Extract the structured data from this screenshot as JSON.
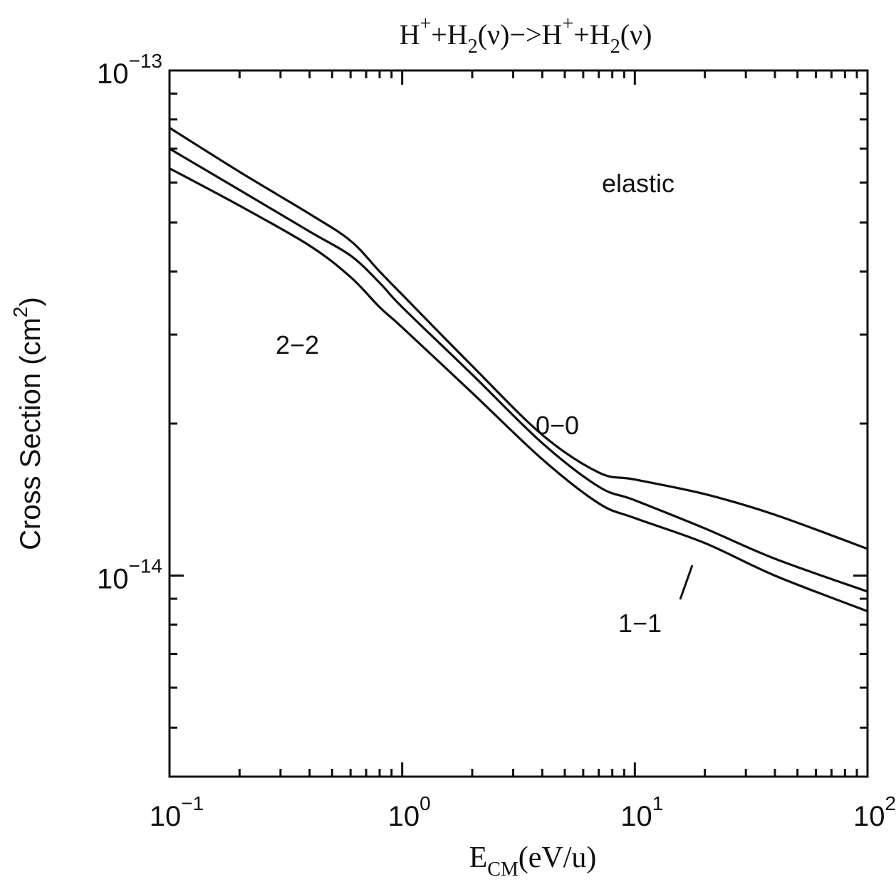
{
  "chart_data": {
    "type": "line",
    "title": {
      "parts": [
        {
          "t": "H",
          "k": "n"
        },
        {
          "t": "+",
          "k": "sup"
        },
        {
          "t": "+H",
          "k": "n"
        },
        {
          "t": "2",
          "k": "sub"
        },
        {
          "t": "(ν)−>H",
          "k": "n"
        },
        {
          "t": "+",
          "k": "sup"
        },
        {
          "t": "+H",
          "k": "n"
        },
        {
          "t": "2",
          "k": "sub"
        },
        {
          "t": "(ν)",
          "k": "n"
        }
      ]
    },
    "xlabel": {
      "main": "E",
      "sub": "CM",
      "rest": "(eV/u)"
    },
    "ylabel": {
      "main": "Cross Section (cm",
      "sup": "2",
      "rest": ")"
    },
    "xscale": "log",
    "yscale": "log",
    "xlim": [
      0.1,
      100
    ],
    "ylim": [
      4e-15,
      1e-13
    ],
    "x_tick_labels": [
      {
        "value": 0.1,
        "base": "10",
        "exp": "−1"
      },
      {
        "value": 1,
        "base": "10",
        "exp": "0"
      },
      {
        "value": 10,
        "base": "10",
        "exp": "1"
      },
      {
        "value": 100,
        "base": "10",
        "exp": "2"
      }
    ],
    "y_tick_labels": [
      {
        "value": 1e-13,
        "base": "10",
        "exp": "−13"
      },
      {
        "value": 1e-14,
        "base": "10",
        "exp": "−14"
      }
    ],
    "grid": false,
    "annotations": {
      "panel": "elastic",
      "curve_00": "0−0",
      "curve_11": "1−1",
      "curve_22": "2−2"
    },
    "series": [
      {
        "label": "0−0",
        "x": [
          0.1,
          0.2,
          0.4,
          0.6,
          0.8,
          1.0,
          2.0,
          4.0,
          7.0,
          10,
          20,
          40,
          100
        ],
        "y": [
          7.7e-14,
          6.3e-14,
          5.2e-14,
          4.6e-14,
          4e-14,
          3.6e-14,
          2.6e-14,
          1.9e-14,
          1.6e-14,
          1.55e-14,
          1.45e-14,
          1.32e-14,
          1.13e-14
        ]
      },
      {
        "label": "1−1",
        "x": [
          0.1,
          0.2,
          0.4,
          0.6,
          0.8,
          1.0,
          2.0,
          4.0,
          7.0,
          10,
          20,
          40,
          100
        ],
        "y": [
          7e-14,
          5.8e-14,
          4.8e-14,
          4.3e-14,
          3.8e-14,
          3.4e-14,
          2.5e-14,
          1.83e-14,
          1.5e-14,
          1.41e-14,
          1.24e-14,
          1.08e-14,
          9.3e-15
        ]
      },
      {
        "label": "2−2",
        "x": [
          0.1,
          0.2,
          0.4,
          0.6,
          0.8,
          1.0,
          2.0,
          4.0,
          7.0,
          10,
          20,
          40,
          100
        ],
        "y": [
          6.4e-14,
          5.4e-14,
          4.5e-14,
          3.9e-14,
          3.4e-14,
          3.1e-14,
          2.3e-14,
          1.7e-14,
          1.39e-14,
          1.3e-14,
          1.16e-14,
          1e-14,
          8.5e-15
        ]
      }
    ]
  }
}
